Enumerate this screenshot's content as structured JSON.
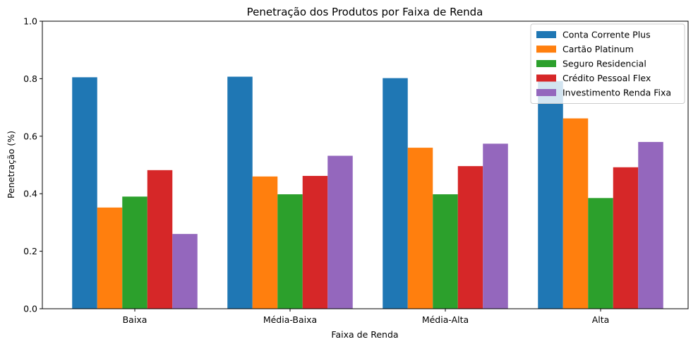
{
  "chart_data": {
    "type": "bar",
    "title": "Penetração dos Produtos por Faixa de Renda",
    "xlabel": "Faixa de Renda",
    "ylabel": "Penetração (%)",
    "categories": [
      "Baixa",
      "Média-Baixa",
      "Média-Alta",
      "Alta"
    ],
    "ylim": [
      0,
      1.0
    ],
    "yticks": [
      "0.0",
      "0.2",
      "0.4",
      "0.6",
      "0.8",
      "1.0"
    ],
    "grid": false,
    "legend_position": "top-right",
    "series": [
      {
        "name": "Conta Corrente Plus",
        "color": "#1f77b4",
        "values": [
          0.805,
          0.807,
          0.802,
          0.792
        ]
      },
      {
        "name": "Cartão Platinum",
        "color": "#ff7f0e",
        "values": [
          0.352,
          0.46,
          0.56,
          0.662
        ]
      },
      {
        "name": "Seguro Residencial",
        "color": "#2ca02c",
        "values": [
          0.39,
          0.398,
          0.398,
          0.385
        ]
      },
      {
        "name": "Crédito Pessoal Flex",
        "color": "#d62728",
        "values": [
          0.482,
          0.462,
          0.496,
          0.492
        ]
      },
      {
        "name": "Investimento Renda Fixa",
        "color": "#9467bd",
        "values": [
          0.26,
          0.532,
          0.574,
          0.58
        ]
      }
    ]
  }
}
